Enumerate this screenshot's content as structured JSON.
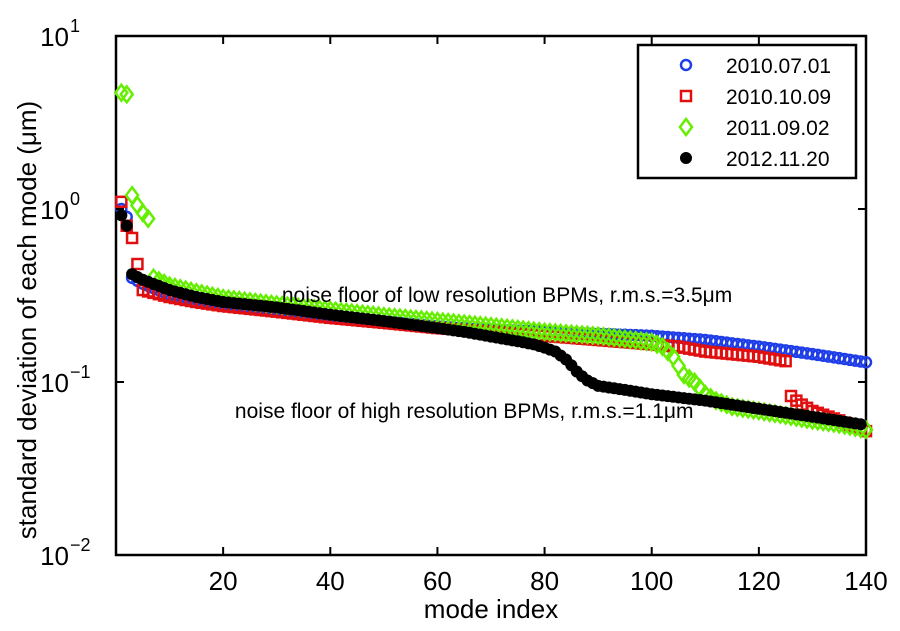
{
  "chart_data": {
    "type": "scatter",
    "title": "",
    "xlabel": "mode index",
    "ylabel_prefix": "standard deviation of each mode (",
    "ylabel_unit": "μm",
    "ylabel_suffix": ")",
    "xlim": [
      0,
      140
    ],
    "ylim": [
      0.01,
      10
    ],
    "yscale": "log",
    "xticks": [
      20,
      40,
      60,
      80,
      100,
      120,
      140
    ],
    "xtick_labels": [
      "20",
      "40",
      "60",
      "80",
      "100",
      "120",
      "140"
    ],
    "yticks": [
      0.01,
      0.1,
      1,
      10
    ],
    "ytick_bases": [
      "10",
      "10",
      "10",
      "10"
    ],
    "ytick_exps": [
      "−2",
      "−1",
      "0",
      "1"
    ],
    "legend_position": "top-right",
    "annotations": [
      {
        "text": "noise floor of low resolution BPMs, r.m.s.=3.5μm",
        "x": 73,
        "y": 0.29
      },
      {
        "text": "noise floor of high resolution BPMs, r.m.s.=1.1μm",
        "x": 65,
        "y": 0.062
      }
    ],
    "series": [
      {
        "name": "2010.07.01",
        "marker": "circle",
        "color": "#1f3ee8",
        "x": [
          1,
          2,
          3,
          5,
          10,
          15,
          20,
          30,
          40,
          50,
          60,
          70,
          80,
          90,
          100,
          110,
          120,
          130,
          140
        ],
        "y": [
          1.0,
          0.9,
          0.4,
          0.37,
          0.32,
          0.3,
          0.28,
          0.26,
          0.24,
          0.225,
          0.21,
          0.2,
          0.195,
          0.19,
          0.185,
          0.175,
          0.16,
          0.145,
          0.13
        ]
      },
      {
        "name": "2010.10.09",
        "marker": "square",
        "color": "#e01010",
        "x": [
          1,
          2,
          3,
          5,
          10,
          15,
          20,
          30,
          40,
          50,
          60,
          70,
          80,
          90,
          100,
          105,
          110,
          115,
          120,
          125,
          126,
          127,
          128,
          130,
          135,
          140
        ],
        "y": [
          1.1,
          0.8,
          0.68,
          0.34,
          0.31,
          0.29,
          0.275,
          0.255,
          0.235,
          0.22,
          0.205,
          0.195,
          0.185,
          0.175,
          0.165,
          0.16,
          0.15,
          0.145,
          0.14,
          0.132,
          0.083,
          0.078,
          0.074,
          0.068,
          0.06,
          0.052
        ]
      },
      {
        "name": "2011.09.02",
        "marker": "diamond",
        "color": "#66ee00",
        "x": [
          1,
          2,
          3,
          4,
          5,
          6,
          7,
          10,
          15,
          20,
          30,
          40,
          50,
          60,
          70,
          80,
          90,
          100,
          102,
          104,
          106,
          108,
          110,
          112,
          115,
          120,
          125,
          130,
          135,
          140
        ],
        "y": [
          4.7,
          4.6,
          1.2,
          1.05,
          0.95,
          0.88,
          0.4,
          0.36,
          0.33,
          0.305,
          0.28,
          0.26,
          0.24,
          0.225,
          0.21,
          0.195,
          0.185,
          0.17,
          0.16,
          0.14,
          0.11,
          0.1,
          0.085,
          0.078,
          0.072,
          0.068,
          0.064,
          0.06,
          0.057,
          0.053
        ]
      },
      {
        "name": "2012.11.20",
        "marker": "dot",
        "color": "#000000",
        "x": [
          1,
          2,
          3,
          5,
          10,
          15,
          20,
          30,
          40,
          50,
          60,
          65,
          70,
          75,
          78,
          80,
          82,
          84,
          85,
          86,
          87,
          88,
          90,
          95,
          100,
          110,
          120,
          130,
          139
        ],
        "y": [
          0.92,
          0.8,
          0.42,
          0.39,
          0.34,
          0.31,
          0.29,
          0.27,
          0.245,
          0.225,
          0.205,
          0.195,
          0.183,
          0.172,
          0.165,
          0.158,
          0.15,
          0.135,
          0.125,
          0.115,
          0.108,
          0.102,
          0.095,
          0.09,
          0.085,
          0.078,
          0.07,
          0.063,
          0.057
        ]
      }
    ]
  }
}
